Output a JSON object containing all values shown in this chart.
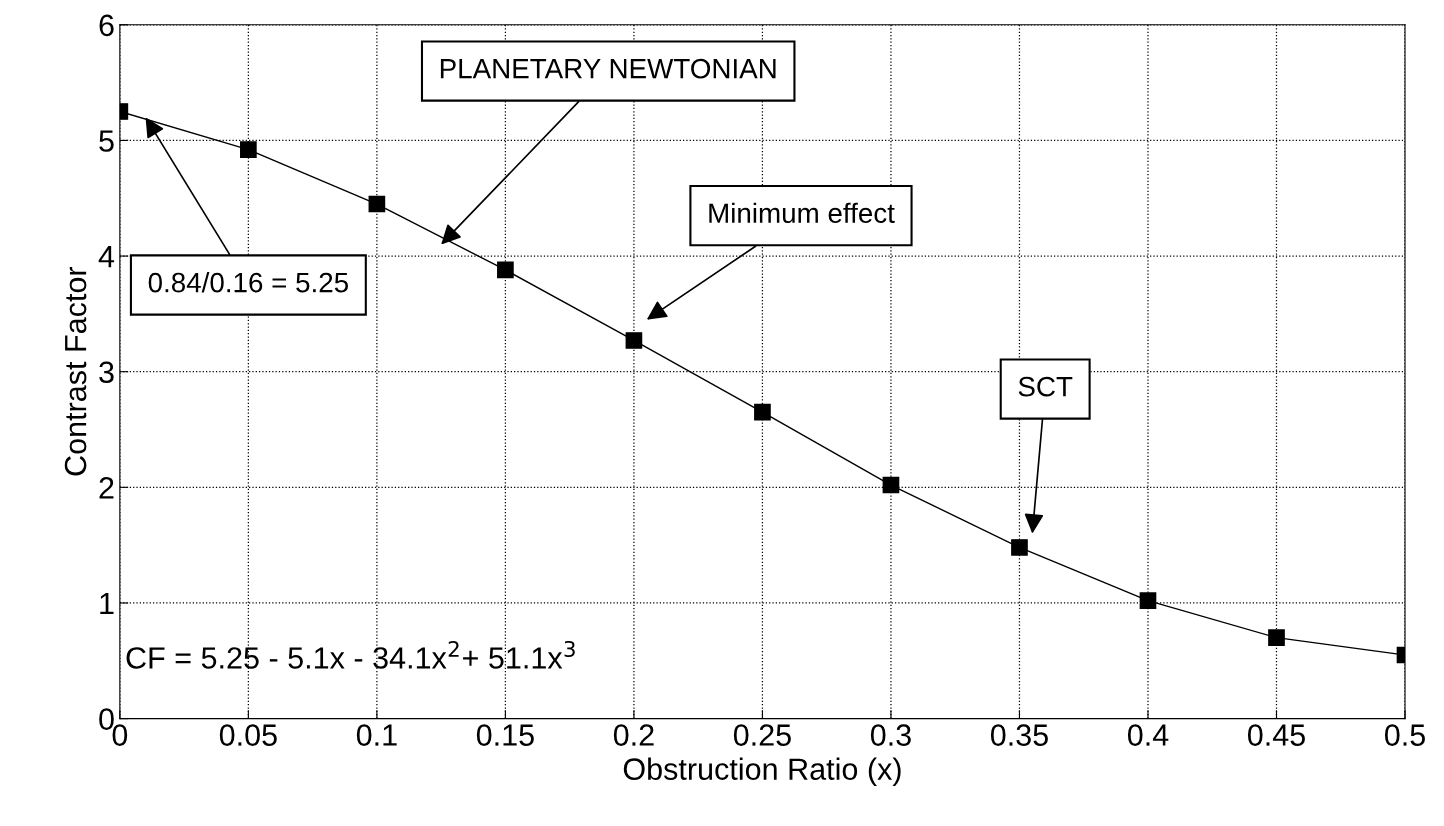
{
  "chart_data": {
    "type": "line",
    "xlabel": "Obstruction Ratio (x)",
    "ylabel": "Contrast Factor",
    "x": [
      0,
      0.05,
      0.1,
      0.15,
      0.2,
      0.25,
      0.3,
      0.35,
      0.4,
      0.45,
      0.5
    ],
    "series": [
      {
        "color": "#000000",
        "values": [
          5.25,
          4.92,
          4.45,
          3.88,
          3.27,
          2.65,
          2.02,
          1.48,
          1.02,
          0.7,
          0.55
        ]
      }
    ],
    "xlim": [
      0,
      0.5
    ],
    "xticks": [
      0,
      0.05,
      0.1,
      0.15,
      0.2,
      0.25,
      0.3,
      0.35,
      0.4,
      0.45,
      0.5
    ],
    "ylim": [
      0,
      6
    ],
    "yticks": [
      0,
      1,
      2,
      3,
      4,
      5,
      6
    ],
    "grid": true,
    "marker": "square",
    "line_style": "solid",
    "annotations": [
      "PLANETARY NEWTONIAN",
      "Minimum effect",
      "SCT",
      {
        "text": "0.84/0.16 = 5.25",
        "x": 0.01,
        "y": 5.2
      },
      "CF = 5.25 - 5.1x - 34.1x$^{2}$+ 51.1x$^{3}$"
    ]
  }
}
